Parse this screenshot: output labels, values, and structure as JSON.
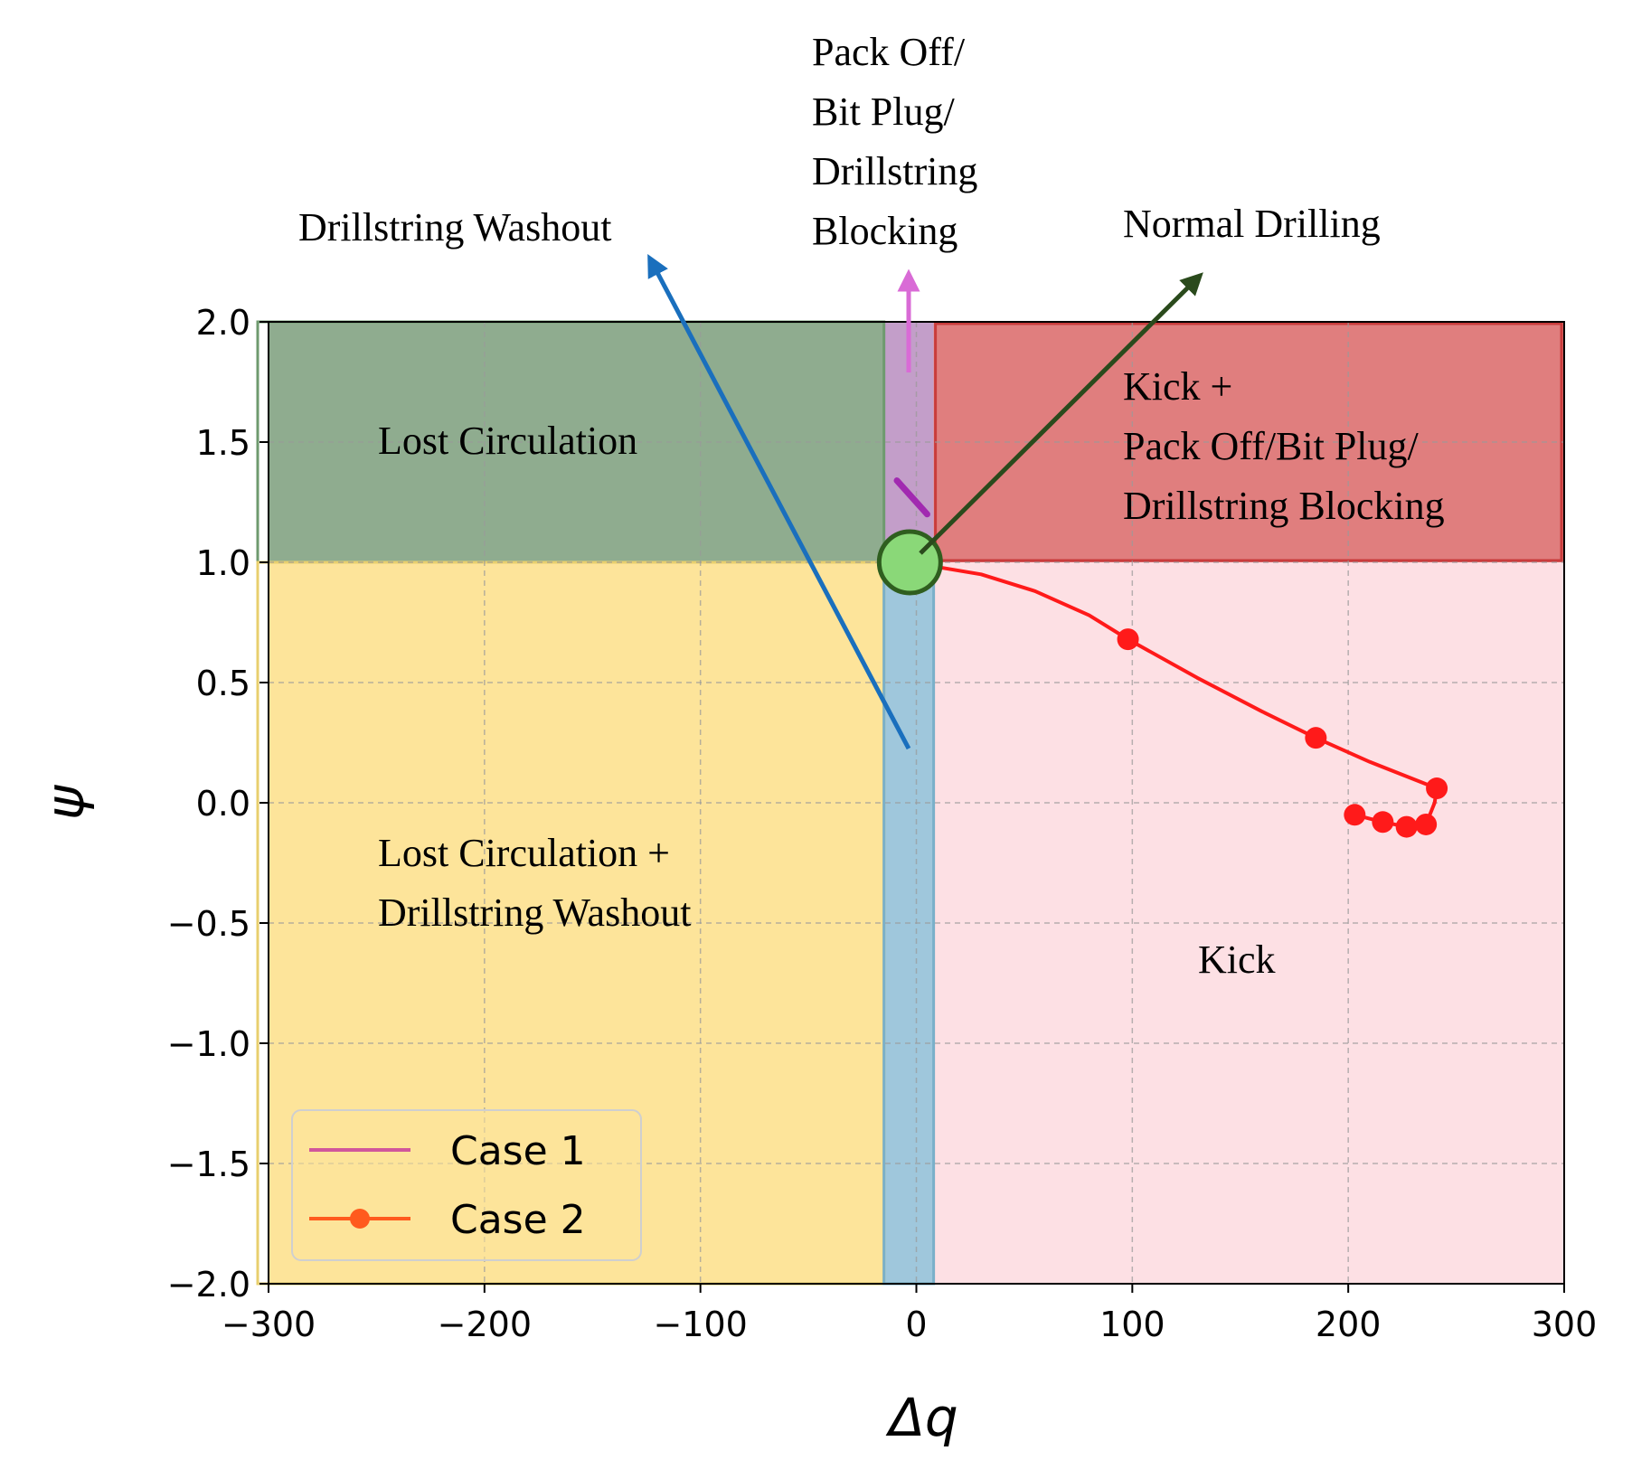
{
  "chart_data": {
    "type": "line",
    "xlabel": "Δq",
    "ylabel": "ψ",
    "xlim": [
      -300,
      300
    ],
    "ylim": [
      -2.0,
      2.0
    ],
    "grid": true,
    "x_ticks": [
      -300,
      -200,
      -100,
      0,
      100,
      200,
      300
    ],
    "x_tick_labels": [
      "−300",
      "−200",
      "−100",
      "0",
      "100",
      "200",
      "300"
    ],
    "y_ticks": [
      2.0,
      1.5,
      1.0,
      0.5,
      0.0,
      -0.5,
      -1.0,
      -1.5,
      -2.0
    ],
    "y_tick_labels": [
      "2.0",
      "1.5",
      "1.0",
      "0.5",
      "0.0",
      "−0.5",
      "−1.0",
      "−1.5",
      "−2.0"
    ],
    "legend": {
      "position": "lower-left"
    },
    "regions": [
      {
        "name": "Lost Circulation",
        "x": [
          -300,
          -15
        ],
        "y": [
          1.0,
          2.0
        ],
        "color": "#8fac8f"
      },
      {
        "name": "Lost Circulation + Drillstring Washout",
        "x": [
          -300,
          -15
        ],
        "y": [
          -2.0,
          1.0
        ],
        "color": "#fde49a"
      },
      {
        "name": "Pack Off/Bit Plug/Drillstring Blocking",
        "x": [
          -15,
          8
        ],
        "y": [
          1.0,
          2.0
        ],
        "color": "#c39ec9"
      },
      {
        "name": "Drillstring Washout",
        "x": [
          -15,
          8
        ],
        "y": [
          -2.0,
          1.0
        ],
        "color": "#9fc7dc"
      },
      {
        "name": "Kick + Pack Off/Bit Plug/Drillstring Blocking",
        "x": [
          8,
          300
        ],
        "y": [
          1.0,
          2.0
        ],
        "color": "#e07e7e"
      },
      {
        "name": "Kick",
        "x": [
          8,
          300
        ],
        "y": [
          -2.0,
          1.0
        ],
        "color": "#fde0e4"
      }
    ],
    "normal_point": {
      "x": -3,
      "y": 1.0,
      "color": "#8ad878"
    },
    "series": [
      {
        "name": "Case 1",
        "color": "#a12ab0",
        "legend_color": "#d0569b",
        "x": [
          -9,
          -5,
          0,
          5
        ],
        "y": [
          1.34,
          1.3,
          1.25,
          1.2
        ]
      },
      {
        "name": "Case 2",
        "color": "#ff1a1a",
        "legend_color": "#ff5a1e",
        "x": [
          10,
          30,
          55,
          80,
          98,
          130,
          160,
          185,
          210,
          241,
          240,
          236,
          227,
          216,
          203
        ],
        "y": [
          0.98,
          0.95,
          0.88,
          0.78,
          0.68,
          0.52,
          0.38,
          0.27,
          0.17,
          0.06,
          0.0,
          -0.09,
          -0.1,
          -0.08,
          -0.05
        ],
        "markers_x": [
          98,
          185,
          241,
          203,
          216,
          227,
          236
        ],
        "markers_y": [
          0.68,
          0.27,
          0.06,
          -0.05,
          -0.08,
          -0.1,
          -0.09
        ]
      }
    ],
    "annotations": [
      {
        "lines": [
          "Drillstring Washout"
        ],
        "color": "#1a6fbd"
      },
      {
        "lines": [
          "Pack Off/",
          "Bit Plug/",
          "Drillstring",
          "Blocking"
        ],
        "color": "#d96bd6"
      },
      {
        "lines": [
          "Normal Drilling"
        ],
        "color": "#2a4a1c"
      }
    ],
    "region_labels": [
      {
        "lines": [
          "Lost Circulation"
        ]
      },
      {
        "lines": [
          "Kick +",
          "Pack Off/Bit Plug/",
          "Drillstring Blocking"
        ]
      },
      {
        "lines": [
          "Lost Circulation +",
          "Drillstring Washout"
        ]
      },
      {
        "lines": [
          "Kick"
        ]
      }
    ]
  }
}
